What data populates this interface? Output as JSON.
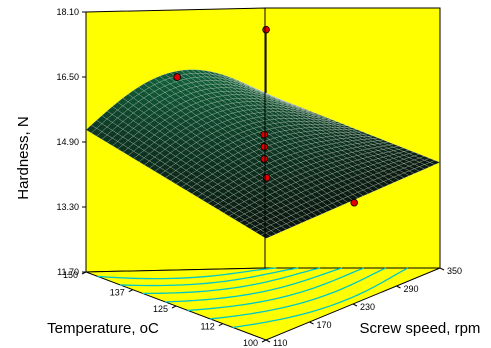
{
  "chart_data": {
    "type": "surface-3d",
    "title": "",
    "x_axis": {
      "label": "Screw speed, rpm",
      "ticks": [
        "110",
        "170",
        "230",
        "290",
        "350"
      ],
      "range": [
        110,
        350
      ]
    },
    "y_axis": {
      "label": "Temperature, oC",
      "ticks": [
        "100",
        "112",
        "125",
        "137",
        "150"
      ],
      "range": [
        100,
        150
      ]
    },
    "z_axis": {
      "label": "Hardness, N",
      "ticks": [
        "11.70",
        "13.30",
        "14.90",
        "16.50",
        "18.10"
      ],
      "range": [
        11.7,
        18.1
      ]
    },
    "surface_corners": [
      {
        "speed": 110,
        "temperature": 150,
        "hardness": 15.2
      },
      {
        "speed": 350,
        "temperature": 150,
        "hardness": 16.0
      },
      {
        "speed": 350,
        "temperature": 100,
        "hardness": 14.3
      },
      {
        "speed": 110,
        "temperature": 100,
        "hardness": 14.2
      }
    ],
    "design_points": [
      {
        "speed": 170,
        "temperature": 137,
        "hardness": 16.8
      },
      {
        "speed": 290,
        "temperature": 137,
        "hardness": 17.7
      },
      {
        "speed": 170,
        "temperature": 112,
        "hardness": 14.95
      },
      {
        "speed": 290,
        "temperature": 112,
        "hardness": 13.65
      },
      {
        "speed": 230,
        "temperature": 125,
        "hardness": 15.45
      },
      {
        "speed": 230,
        "temperature": 125,
        "hardness": 15.15
      },
      {
        "speed": 230,
        "temperature": 125,
        "hardness": 14.85
      }
    ],
    "colors": {
      "wall": "#ffff00",
      "contour": "#00c8c8",
      "point": "#e00000",
      "surface_high": "#14a05a",
      "surface_low": "#0a0a0a"
    },
    "grid": false
  }
}
